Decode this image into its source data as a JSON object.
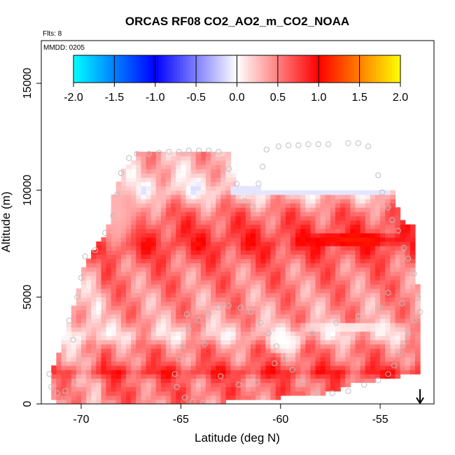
{
  "chart_data": {
    "type": "heatmap",
    "title": "ORCAS RF08 CO2_AO2_m_CO2_NOAA",
    "flights_note": "Flts: 8",
    "date_note": "MMDD: 0205",
    "xlabel": "Latitude (deg N)",
    "ylabel": "Altitude (m)",
    "xlim": [
      -72,
      -52.3
    ],
    "ylim": [
      0,
      17000
    ],
    "xticks": [
      -70,
      -65,
      -60,
      -55
    ],
    "xtick_labels": [
      "-70",
      "-65",
      "-60",
      "-55"
    ],
    "yticks": [
      0,
      5000,
      10000,
      15000
    ],
    "ytick_labels": [
      "0",
      "5000",
      "10000",
      "15000"
    ],
    "colorbar": {
      "min": -2.0,
      "max": 2.0,
      "ticks": [
        -2.0,
        -1.5,
        -1.0,
        -0.5,
        0.0,
        0.5,
        1.0,
        1.5,
        2.0
      ],
      "tick_labels": [
        "-2.0",
        "-1.5",
        "-1.0",
        "-0.5",
        "0.0",
        "0.5",
        "1.0",
        "1.5",
        "2.0"
      ],
      "colors": [
        "#00ffff",
        "#0000ff",
        "#ffffff",
        "#ff0000",
        "#ffff00"
      ]
    },
    "field": {
      "lat_step": 0.25,
      "alt_step": 200,
      "top_envelope": [
        [
          -71.5,
          1400
        ],
        [
          -70.5,
          4000
        ],
        [
          -69.8,
          6500
        ],
        [
          -68.7,
          8000
        ],
        [
          -68.3,
          10000
        ],
        [
          -67.8,
          11000
        ],
        [
          -66.9,
          11800
        ],
        [
          -62.5,
          11800
        ],
        [
          -62.3,
          10200
        ],
        [
          -61.0,
          10000
        ],
        [
          -54.5,
          10000
        ],
        [
          -54.3,
          9800
        ],
        [
          -54.0,
          8500
        ],
        [
          -53.3,
          8200
        ],
        [
          -53.2,
          5500
        ]
      ],
      "bottom_envelope": [
        [
          -71.5,
          300
        ],
        [
          -70.5,
          0
        ],
        [
          -64.0,
          0
        ],
        [
          -62.0,
          300
        ],
        [
          -58.0,
          500
        ],
        [
          -56.5,
          1000
        ],
        [
          -54.8,
          1300
        ],
        [
          -53.2,
          1500
        ]
      ],
      "profile": [
        {
          "alt": 0,
          "val": 0.5
        },
        {
          "alt": 600,
          "val": 0.6
        },
        {
          "alt": 1000,
          "val": 0.55
        },
        {
          "alt": 1500,
          "val": 0.8
        },
        {
          "alt": 2000,
          "val": 0.55
        },
        {
          "alt": 2600,
          "val": 0.5
        },
        {
          "alt": 3200,
          "val": 0.2
        },
        {
          "alt": 4000,
          "val": 0.4
        },
        {
          "alt": 5000,
          "val": 0.45
        },
        {
          "alt": 5500,
          "val": 0.5
        },
        {
          "alt": 6400,
          "val": 0.55
        },
        {
          "alt": 7500,
          "val": 0.8
        },
        {
          "alt": 8200,
          "val": 0.7
        },
        {
          "alt": 9000,
          "val": 0.55
        },
        {
          "alt": 9600,
          "val": 0.3
        },
        {
          "alt": 10000,
          "val": 0.1
        },
        {
          "alt": 10800,
          "val": 0.25
        },
        {
          "alt": 11800,
          "val": 0.35
        }
      ],
      "features": [
        {
          "lat": -59.8,
          "alt": 2900,
          "lat_radius": 1.0,
          "alt_radius": 700,
          "val": 0.0
        },
        {
          "lat": -56.5,
          "alt": 3600,
          "lat_radius": 3.2,
          "alt_radius": 250,
          "val": 0.05
        },
        {
          "lat": -56.5,
          "alt": 7700,
          "lat_radius": 3.0,
          "alt_radius": 400,
          "val": 1.1
        },
        {
          "lat": -68.2,
          "alt": 9000,
          "lat_radius": 1.5,
          "alt_radius": 2000,
          "val": 0.3
        }
      ],
      "overlay_band": {
        "lat_from": -62.5,
        "lat_to": -54.5,
        "alt_from": 9800,
        "alt_to": 10200,
        "val": -0.1
      }
    },
    "flight_track": [
      [
        -71.6,
        1400
      ],
      [
        -71.5,
        800
      ],
      [
        -71.2,
        500
      ],
      [
        -70.8,
        600
      ],
      [
        -70.3,
        1000
      ],
      [
        -70.1,
        2000
      ],
      [
        -70.4,
        3000
      ],
      [
        -70.6,
        3900
      ],
      [
        -70.2,
        5000
      ],
      [
        -70.0,
        5900
      ],
      [
        -69.8,
        6900
      ],
      [
        -69.3,
        7200
      ],
      [
        -68.8,
        8000
      ],
      [
        -68.4,
        8800
      ],
      [
        -68.2,
        9800
      ],
      [
        -68.0,
        10800
      ],
      [
        -67.6,
        11500
      ],
      [
        -67.2,
        11700
      ],
      [
        -66.6,
        11700
      ],
      [
        -66.1,
        11750
      ],
      [
        -65.6,
        11800
      ],
      [
        -65.1,
        11800
      ],
      [
        -64.6,
        11850
      ],
      [
        -64.1,
        11850
      ],
      [
        -63.6,
        11850
      ],
      [
        -63.1,
        11800
      ],
      [
        -62.6,
        11000
      ],
      [
        -62.2,
        10300
      ],
      [
        -61.8,
        9500
      ],
      [
        -61.4,
        9200
      ],
      [
        -61.1,
        10300
      ],
      [
        -60.9,
        11100
      ],
      [
        -60.7,
        11900
      ],
      [
        -60.1,
        12050
      ],
      [
        -59.6,
        12100
      ],
      [
        -59.1,
        12100
      ],
      [
        -58.6,
        12150
      ],
      [
        -58.1,
        12150
      ],
      [
        -57.6,
        12150
      ],
      [
        -56.6,
        12200
      ],
      [
        -56.1,
        12200
      ],
      [
        -55.6,
        12050
      ],
      [
        -55.1,
        10700
      ],
      [
        -54.9,
        9900
      ],
      [
        -54.6,
        9200
      ],
      [
        -54.4,
        8600
      ],
      [
        -54.1,
        8100
      ],
      [
        -53.8,
        7300
      ],
      [
        -53.6,
        6800
      ],
      [
        -53.3,
        6100
      ],
      [
        -53.1,
        5000
      ],
      [
        -53.0,
        4300
      ],
      [
        -53.3,
        3900
      ],
      [
        -53.6,
        3300
      ],
      [
        -53.8,
        2800
      ],
      [
        -54.0,
        2400
      ],
      [
        -54.3,
        1800
      ],
      [
        -54.6,
        1400
      ],
      [
        -55.1,
        1100
      ],
      [
        -55.8,
        900
      ],
      [
        -56.6,
        600
      ],
      [
        -57.4,
        500
      ],
      [
        -58.2,
        500
      ],
      [
        -58.9,
        1000
      ],
      [
        -59.4,
        1600
      ],
      [
        -59.8,
        2100
      ],
      [
        -60.2,
        2700
      ],
      [
        -60.6,
        3300
      ],
      [
        -61.0,
        3800
      ],
      [
        -61.5,
        4300
      ],
      [
        -62.0,
        4500
      ],
      [
        -62.6,
        4600
      ],
      [
        -63.1,
        4500
      ],
      [
        -63.6,
        4200
      ],
      [
        -64.1,
        3900
      ],
      [
        -64.6,
        3500
      ],
      [
        -64.9,
        2700
      ],
      [
        -65.1,
        2100
      ],
      [
        -65.3,
        1400
      ],
      [
        -65.2,
        800
      ],
      [
        -64.8,
        300
      ],
      [
        -64.4,
        100
      ],
      [
        -63.9,
        50
      ],
      [
        -64.7,
        4200
      ],
      [
        -63.8,
        2800
      ],
      [
        -63.0,
        1300
      ],
      [
        -62.1,
        900
      ],
      [
        -61.2,
        1000
      ],
      [
        -60.3,
        1900
      ],
      [
        -58.4,
        3300
      ],
      [
        -57.2,
        3800
      ],
      [
        -56.1,
        4100
      ],
      [
        -55.0,
        4500
      ],
      [
        -53.9,
        4700
      ],
      [
        -54.6,
        5200
      ]
    ],
    "arrow": {
      "lat": -53.0,
      "direction": "down"
    }
  }
}
